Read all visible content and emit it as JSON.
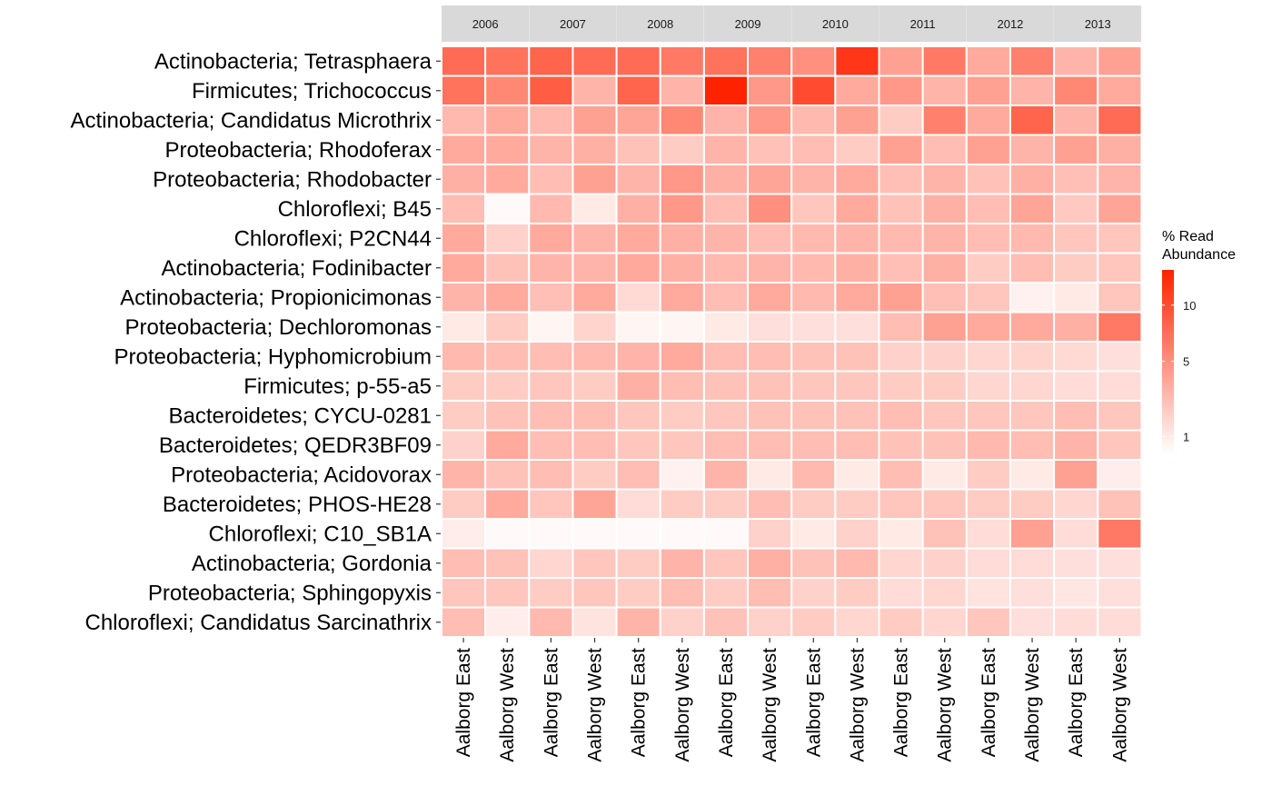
{
  "chart_data": {
    "type": "heatmap",
    "facets": [
      "2006",
      "2007",
      "2008",
      "2009",
      "2010",
      "2011",
      "2012",
      "2013"
    ],
    "columns": [
      "Aalborg East",
      "Aalborg West"
    ],
    "rows": [
      "Actinobacteria; Tetrasphaera",
      "Firmicutes; Trichococcus",
      "Actinobacteria; Candidatus Microthrix",
      "Proteobacteria; Rhodoferax",
      "Proteobacteria; Rhodobacter",
      "Chloroflexi; B45",
      "Chloroflexi; P2CN44",
      "Actinobacteria; Fodinibacter",
      "Actinobacteria; Propionicimonas",
      "Proteobacteria; Dechloromonas",
      "Proteobacteria; Hyphomicrobium",
      "Firmicutes; p-55-a5",
      "Bacteroidetes; CYCU-0281",
      "Bacteroidetes; QEDR3BF09",
      "Proteobacteria; Acidovorax",
      "Bacteroidetes; PHOS-HE28",
      "Chloroflexi; C10_SB1A",
      "Actinobacteria; Gordonia",
      "Proteobacteria; Sphingopyxis",
      "Chloroflexi; Candidatus Sarcinathrix"
    ],
    "values": [
      [
        [
          7.5,
          7
        ],
        [
          8,
          7.5
        ],
        [
          7.5,
          6.5
        ],
        [
          7,
          6
        ],
        [
          5,
          12
        ],
        [
          4,
          6.5
        ],
        [
          3.5,
          6
        ],
        [
          3,
          4
        ]
      ],
      [
        [
          7,
          5.5
        ],
        [
          8.5,
          3
        ],
        [
          8,
          3
        ],
        [
          14,
          4.5
        ],
        [
          10,
          3.5
        ],
        [
          4.5,
          3
        ],
        [
          4,
          3
        ],
        [
          5.5,
          3.5
        ]
      ],
      [
        [
          2.8,
          3.5
        ],
        [
          2.8,
          4
        ],
        [
          3.8,
          5.5
        ],
        [
          3,
          4.5
        ],
        [
          2.8,
          4
        ],
        [
          2,
          6
        ],
        [
          3.5,
          8
        ],
        [
          3,
          7.5
        ]
      ],
      [
        [
          3.5,
          3.5
        ],
        [
          3,
          3.2
        ],
        [
          2.4,
          2
        ],
        [
          3,
          2.4
        ],
        [
          2.6,
          2
        ],
        [
          4,
          2.6
        ],
        [
          4,
          3
        ],
        [
          4,
          3.2
        ]
      ],
      [
        [
          3.2,
          3.5
        ],
        [
          2.6,
          4
        ],
        [
          3,
          4.5
        ],
        [
          3.2,
          3.8
        ],
        [
          3,
          3.5
        ],
        [
          2.5,
          3
        ],
        [
          2.4,
          3.2
        ],
        [
          2.5,
          3
        ]
      ],
      [
        [
          2.6,
          0.6
        ],
        [
          2.8,
          1
        ],
        [
          3.2,
          4.5
        ],
        [
          2.6,
          5
        ],
        [
          2.2,
          3.5
        ],
        [
          2.4,
          3.2
        ],
        [
          2.6,
          3.8
        ],
        [
          2.1,
          3.8
        ]
      ],
      [
        [
          3.5,
          1.8
        ],
        [
          3.5,
          3
        ],
        [
          3.5,
          3.2
        ],
        [
          3,
          2.6
        ],
        [
          2.8,
          3
        ],
        [
          2.8,
          3
        ],
        [
          2.6,
          2.8
        ],
        [
          2.2,
          2.2
        ]
      ],
      [
        [
          3.5,
          2.4
        ],
        [
          3,
          3
        ],
        [
          3.6,
          3.2
        ],
        [
          2.8,
          3
        ],
        [
          2.8,
          3.2
        ],
        [
          2.5,
          3.2
        ],
        [
          2,
          2.6
        ],
        [
          2,
          2.2
        ]
      ],
      [
        [
          3,
          3.5
        ],
        [
          2.5,
          3.5
        ],
        [
          1.5,
          3.5
        ],
        [
          2.6,
          3.5
        ],
        [
          2.8,
          3.5
        ],
        [
          4,
          2.5
        ],
        [
          2.2,
          0.8
        ],
        [
          1,
          2.2
        ]
      ],
      [
        [
          1,
          2
        ],
        [
          0.7,
          1.7
        ],
        [
          0.7,
          0.7
        ],
        [
          1,
          1.3
        ],
        [
          1.3,
          1.3
        ],
        [
          2.6,
          4
        ],
        [
          3.5,
          3.5
        ],
        [
          3.2,
          6.5
        ]
      ],
      [
        [
          2.8,
          2.6
        ],
        [
          2.6,
          2.8
        ],
        [
          3,
          3.5
        ],
        [
          2.6,
          2.6
        ],
        [
          2.4,
          2.4
        ],
        [
          1.8,
          1.8
        ],
        [
          1.6,
          1.7
        ],
        [
          1.5,
          1.3
        ]
      ],
      [
        [
          2,
          2
        ],
        [
          2.2,
          2
        ],
        [
          3.2,
          2.6
        ],
        [
          2.4,
          2.4
        ],
        [
          2.2,
          2.2
        ],
        [
          2,
          2
        ],
        [
          1.6,
          1.6
        ],
        [
          1.4,
          1.4
        ]
      ],
      [
        [
          2,
          2.4
        ],
        [
          2.6,
          2.6
        ],
        [
          2.2,
          2
        ],
        [
          2.2,
          2.4
        ],
        [
          2.4,
          2.4
        ],
        [
          2.6,
          2.2
        ],
        [
          2.2,
          2.2
        ],
        [
          2.6,
          2.2
        ]
      ],
      [
        [
          1.8,
          3.5
        ],
        [
          2.6,
          2.6
        ],
        [
          2.2,
          2.2
        ],
        [
          2.6,
          2.6
        ],
        [
          2.6,
          2.6
        ],
        [
          2.4,
          2.4
        ],
        [
          2.8,
          2.6
        ],
        [
          3,
          2.2
        ]
      ],
      [
        [
          3,
          2.4
        ],
        [
          2.6,
          2
        ],
        [
          2.6,
          0.8
        ],
        [
          3,
          1
        ],
        [
          2.8,
          1
        ],
        [
          2.6,
          1
        ],
        [
          2,
          1
        ],
        [
          4,
          0.9
        ]
      ],
      [
        [
          2,
          3.5
        ],
        [
          2.2,
          3.8
        ],
        [
          1.4,
          2
        ],
        [
          2,
          2.6
        ],
        [
          2,
          2
        ],
        [
          2.2,
          2.2
        ],
        [
          2,
          2
        ],
        [
          1.6,
          2.4
        ]
      ],
      [
        [
          0.9,
          0.6
        ],
        [
          0.6,
          0.6
        ],
        [
          0.6,
          0.6
        ],
        [
          0.6,
          1.8
        ],
        [
          1,
          1.8
        ],
        [
          1,
          2.4
        ],
        [
          1.4,
          4
        ],
        [
          1.4,
          6.5
        ]
      ],
      [
        [
          2.6,
          2.4
        ],
        [
          1.6,
          2.2
        ],
        [
          2,
          3
        ],
        [
          2.2,
          3.2
        ],
        [
          2.4,
          2.8
        ],
        [
          1.6,
          1.8
        ],
        [
          1.4,
          1.4
        ],
        [
          1.3,
          1.3
        ]
      ],
      [
        [
          2.2,
          2.2
        ],
        [
          2,
          2.2
        ],
        [
          2,
          2.6
        ],
        [
          2,
          2.6
        ],
        [
          1.8,
          2
        ],
        [
          1.4,
          1.6
        ],
        [
          1.2,
          1.3
        ],
        [
          1.1,
          1.3
        ]
      ],
      [
        [
          2.6,
          0.9
        ],
        [
          2.8,
          1.2
        ],
        [
          3,
          1.8
        ],
        [
          2.4,
          1.8
        ],
        [
          2,
          1.6
        ],
        [
          2,
          1.6
        ],
        [
          2.2,
          1.3
        ],
        [
          1.4,
          1.4
        ]
      ]
    ],
    "color_scale": {
      "low": "#ffffff",
      "high": "#ff2200",
      "transform": "sqrt",
      "domain": [
        0.5,
        14
      ]
    },
    "legend": {
      "title_line1": "% Read",
      "title_line2": "Abundance",
      "ticks": [
        1,
        5,
        10
      ],
      "placement": "right"
    },
    "facet_strip_color": "#d9d9d9"
  }
}
